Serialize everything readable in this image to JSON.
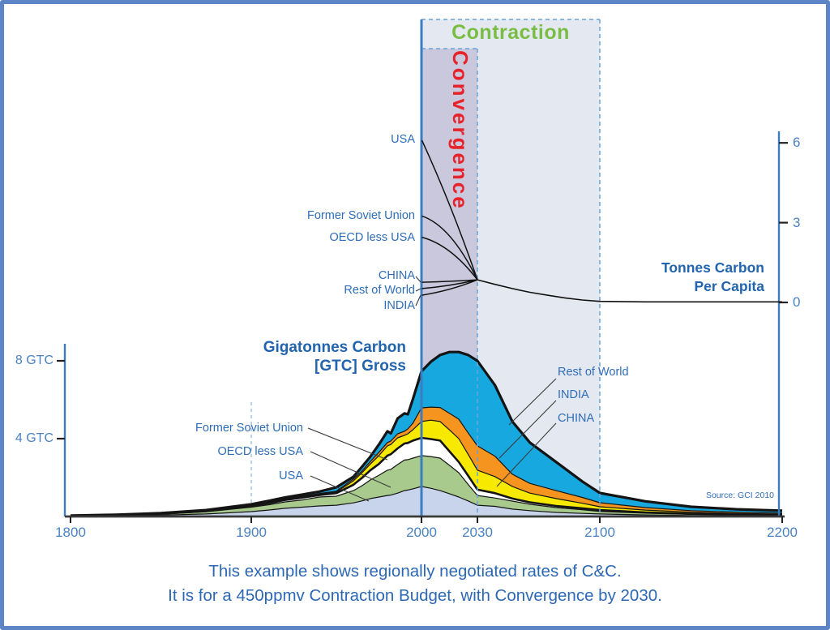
{
  "titles": {
    "contraction": "Contraction",
    "convergence": "Convergence"
  },
  "axis_titles": {
    "left_line1": "Gigatonnes Carbon",
    "left_line2": "[GTC] Gross",
    "right_line1": "Tonnes Carbon",
    "right_line2": "Per Capita"
  },
  "source": "Source:  GCI 2010",
  "caption": {
    "line1": "This example shows regionally negotiated rates of C&C.",
    "line2": "It is for a 450ppmv Contraction Budget, with Convergence by 2030."
  },
  "chart_data": {
    "type": "area",
    "x_axis": {
      "ticks": [
        1800,
        1900,
        2000,
        2030,
        2100,
        2200
      ],
      "range": [
        1800,
        2200
      ]
    },
    "left_y_axis": {
      "tick_labels": [
        "8 GTC",
        "4 GTC"
      ],
      "tick_values": [
        8,
        4
      ],
      "unit": "GTC gross",
      "max": 9
    },
    "right_y_axis": {
      "tick_values": [
        6,
        3,
        0
      ],
      "unit": "tonnes carbon per capita",
      "max": 6.5
    },
    "regions": {
      "contraction": {
        "label": "Contraction",
        "start_year": 2000,
        "end_year": 2100,
        "fill": "#e4e8f0",
        "border": "#6aa2d8"
      },
      "convergence": {
        "label": "Convergence",
        "start_year": 2000,
        "end_year": 2030,
        "fill": "#c9c8dd",
        "border": "#6aa2d8"
      },
      "now_line_year": 2000,
      "now_line_color": "#3c7dc1",
      "history_gridline_year": 1900
    },
    "stack": {
      "note": "cumulative GTC from bottom layer up; 'cum' = running total including this layer",
      "years": [
        1800,
        1825,
        1850,
        1875,
        1900,
        1910,
        1920,
        1930,
        1940,
        1950,
        1960,
        1965,
        1970,
        1975,
        1980,
        1982,
        1986,
        1990,
        1992,
        1995,
        2000,
        2005,
        2010,
        2015,
        2020,
        2025,
        2030,
        2040,
        2050,
        2060,
        2075,
        2090,
        2100,
        2125,
        2150,
        2175,
        2200
      ],
      "series": [
        {
          "name": "USA",
          "color": "#c8d4eb",
          "cum": [
            0.02,
            0.035,
            0.07,
            0.13,
            0.25,
            0.33,
            0.42,
            0.48,
            0.54,
            0.58,
            0.7,
            0.8,
            0.92,
            1.0,
            1.08,
            1.1,
            1.2,
            1.33,
            1.36,
            1.42,
            1.54,
            1.45,
            1.33,
            1.17,
            1.0,
            0.8,
            0.58,
            0.52,
            0.38,
            0.3,
            0.21,
            0.16,
            0.13,
            0.08,
            0.05,
            0.04,
            0.03
          ]
        },
        {
          "name": "OECD less USA",
          "color": "#a8ca8c",
          "cum": [
            0.03,
            0.06,
            0.12,
            0.24,
            0.48,
            0.6,
            0.75,
            0.85,
            1.0,
            1.04,
            1.33,
            1.58,
            1.88,
            2.12,
            2.38,
            2.42,
            2.67,
            2.9,
            2.92,
            3.0,
            3.13,
            3.08,
            3.0,
            2.63,
            2.25,
            1.65,
            1.08,
            0.95,
            0.79,
            0.63,
            0.46,
            0.35,
            0.26,
            0.17,
            0.11,
            0.08,
            0.06
          ]
        },
        {
          "name": "Former Soviet Union",
          "color": "#ffffff",
          "cum": [
            0.035,
            0.07,
            0.14,
            0.28,
            0.54,
            0.68,
            0.85,
            0.97,
            1.1,
            1.2,
            1.63,
            1.98,
            2.38,
            2.7,
            3.13,
            3.2,
            3.5,
            3.75,
            3.78,
            3.9,
            4.04,
            3.98,
            3.9,
            3.35,
            2.8,
            2.1,
            1.38,
            1.2,
            0.92,
            0.73,
            0.54,
            0.42,
            0.33,
            0.21,
            0.14,
            0.11,
            0.08
          ]
        },
        {
          "name": "CHINA",
          "color": "#f7ea00",
          "cum": [
            0.04,
            0.075,
            0.15,
            0.29,
            0.56,
            0.71,
            0.88,
            1.01,
            1.15,
            1.26,
            1.83,
            2.24,
            2.7,
            3.13,
            3.63,
            3.7,
            4.04,
            4.17,
            4.25,
            4.46,
            4.88,
            4.95,
            4.88,
            4.45,
            4.0,
            3.2,
            2.38,
            2.05,
            1.54,
            1.2,
            0.92,
            0.68,
            0.5,
            0.33,
            0.22,
            0.16,
            0.12
          ]
        },
        {
          "name": "INDIA",
          "color": "#f5941f",
          "cum": [
            0.04,
            0.08,
            0.155,
            0.3,
            0.58,
            0.73,
            0.9,
            1.04,
            1.18,
            1.3,
            1.92,
            2.33,
            2.83,
            3.3,
            3.8,
            3.88,
            4.25,
            4.38,
            4.5,
            4.8,
            5.58,
            5.62,
            5.6,
            5.3,
            5.0,
            4.3,
            3.63,
            3.1,
            2.17,
            1.7,
            1.33,
            0.98,
            0.71,
            0.46,
            0.3,
            0.22,
            0.17
          ]
        },
        {
          "name": "Rest of World",
          "color": "#18a8e0",
          "cum": [
            0.05,
            0.09,
            0.17,
            0.33,
            0.63,
            0.8,
            0.98,
            1.13,
            1.28,
            1.5,
            2.04,
            2.55,
            3.08,
            3.7,
            4.38,
            4.27,
            5.04,
            5.3,
            5.25,
            6.04,
            7.46,
            7.95,
            8.3,
            8.45,
            8.45,
            8.3,
            8.0,
            6.75,
            4.88,
            3.8,
            2.8,
            1.8,
            1.21,
            0.78,
            0.5,
            0.37,
            0.3
          ]
        }
      ],
      "peak": {
        "year": 2018,
        "total_gtc": 8.5
      }
    },
    "per_capita": {
      "start_year": 2000,
      "convergence_year": 2030,
      "convergence_value": 0.85,
      "lines": [
        {
          "name": "USA",
          "start": 6.1
        },
        {
          "name": "Former Soviet Union",
          "start": 3.25
        },
        {
          "name": "OECD less USA",
          "start": 2.45
        },
        {
          "name": "CHINA",
          "start": 0.76
        },
        {
          "name": "Rest of World",
          "start": 0.52
        },
        {
          "name": "INDIA",
          "start": 0.27
        }
      ],
      "post_convergence": [
        [
          2030,
          0.85
        ],
        [
          2040,
          0.68
        ],
        [
          2050,
          0.52
        ],
        [
          2060,
          0.38
        ],
        [
          2070,
          0.27
        ],
        [
          2080,
          0.17
        ],
        [
          2090,
          0.09
        ],
        [
          2100,
          0.04
        ],
        [
          2125,
          0.02
        ],
        [
          2150,
          0.02
        ],
        [
          2175,
          0.02
        ],
        [
          2200,
          0.02
        ]
      ]
    }
  }
}
